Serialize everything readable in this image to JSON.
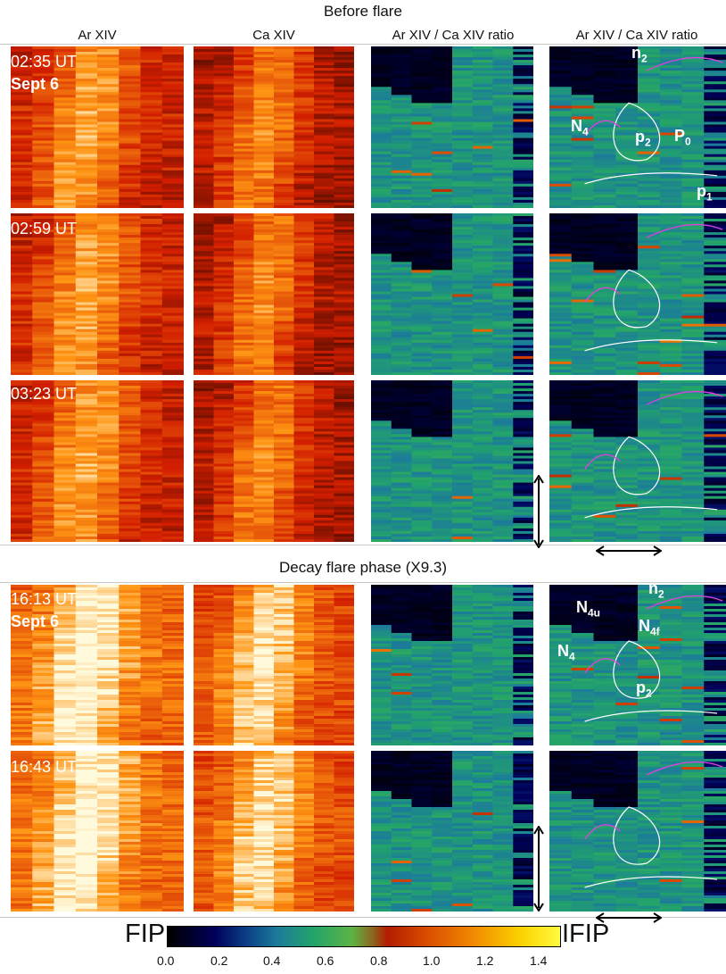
{
  "headers": {
    "before": "Before flare",
    "decay": "Decay flare phase (X9.3)"
  },
  "columns": [
    "Ar XIV",
    "Ca XIV",
    "Ar XIV / Ca XIV ratio",
    "Ar XIV / Ca XIV ratio"
  ],
  "rows": [
    {
      "time": "02:35 UT",
      "date": "Sept 6"
    },
    {
      "time": "02:59 UT",
      "date": ""
    },
    {
      "time": "03:23 UT",
      "date": ""
    },
    {
      "time": "16:13 UT",
      "date": "Sept 6"
    },
    {
      "time": "16:43 UT",
      "date": ""
    }
  ],
  "labels_before": {
    "n2": "n",
    "n2_sub": "2",
    "N4": "N",
    "N4_sub": "4",
    "p2": "p",
    "p2_sub": "2",
    "P0": "P",
    "P0_sub": "0",
    "p1": "p",
    "p1_sub": "1"
  },
  "labels_decay": {
    "n2": "n",
    "n2_sub": "2",
    "N4u": "N",
    "N4u_sub": "4u",
    "N4f": "N",
    "N4f_sub": "4f",
    "N4": "N",
    "N4_sub": "4",
    "p2": "p",
    "p2_sub": "2"
  },
  "colorbar": {
    "left_label": "FIP",
    "right_label": "IFIP",
    "ticks": [
      "0.0",
      "0.2",
      "0.4",
      "0.6",
      "0.8",
      "1.0",
      "1.2",
      "1.4"
    ],
    "range": [
      0.0,
      1.4
    ],
    "colors": [
      "#000000",
      "#00005a",
      "#1c7b9a",
      "#22a36b",
      "#5db443",
      "#b31c00",
      "#f08a00",
      "#fffb40"
    ]
  },
  "icons": {
    "vertical_scale": "double-arrow-vertical-icon",
    "horizontal_scale": "double-arrow-horizontal-icon"
  }
}
